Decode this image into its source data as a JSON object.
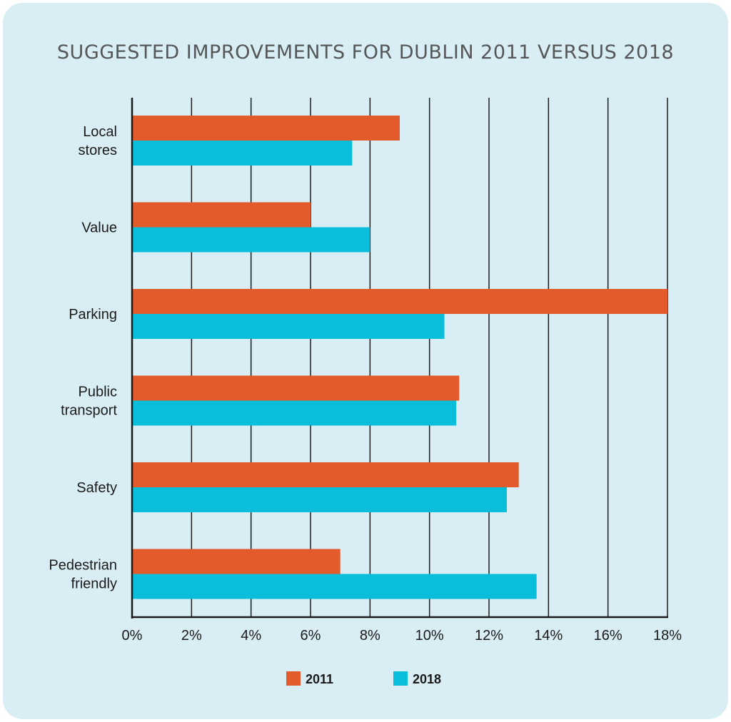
{
  "chart_data": {
    "type": "bar",
    "orientation": "horizontal",
    "title": "SUGGESTED IMPROVEMENTS FOR DUBLIN 2011 VERSUS 2018",
    "categories": [
      [
        "Local",
        "stores"
      ],
      [
        "Value"
      ],
      [
        "Parking"
      ],
      [
        "Public",
        "transport"
      ],
      [
        "Safety"
      ],
      [
        "Pedestrian",
        "friendly"
      ]
    ],
    "series": [
      {
        "name": "2011",
        "color": "#e35a2b",
        "values": [
          9,
          6,
          18,
          11,
          13,
          7
        ]
      },
      {
        "name": "2018",
        "color": "#09bedb",
        "values": [
          7.4,
          8,
          10.5,
          10.9,
          12.6,
          13.6
        ]
      }
    ],
    "xlim": [
      0,
      18
    ],
    "x_ticks": [
      0,
      2,
      4,
      6,
      8,
      10,
      12,
      14,
      16,
      18
    ],
    "x_tick_labels": [
      "0%",
      "2%",
      "4%",
      "6%",
      "8%",
      "10%",
      "12%",
      "14%",
      "16%",
      "18%"
    ],
    "grid": "vertical",
    "legend_position": "bottom"
  }
}
